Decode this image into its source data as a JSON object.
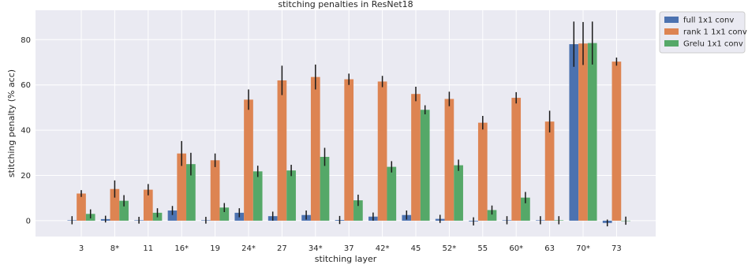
{
  "chart_data": {
    "type": "bar",
    "title": "stitching penalties in ResNet18",
    "xlabel": "stitching layer",
    "ylabel": "stitching penalty (% acc)",
    "ylim": [
      -7,
      93
    ],
    "yticks": [
      0,
      20,
      40,
      60,
      80
    ],
    "grid": true,
    "legend_placement": "outside-top-right",
    "categories": [
      "3",
      "8*",
      "11",
      "16*",
      "19",
      "24*",
      "27",
      "34*",
      "37",
      "42*",
      "45",
      "52*",
      "55",
      "60*",
      "63",
      "70*",
      "73"
    ],
    "series": [
      {
        "name": "full 1x1 conv",
        "color": "#4c72b0",
        "values": [
          0.2,
          0.7,
          0.2,
          4.5,
          0.2,
          3.5,
          2.0,
          2.5,
          0.3,
          1.8,
          2.5,
          0.8,
          -0.3,
          0.2,
          0.2,
          78.0,
          -1.0
        ],
        "errors": [
          1.8,
          1.5,
          1.5,
          2.0,
          1.5,
          2.0,
          2.0,
          2.0,
          1.8,
          1.8,
          2.0,
          1.8,
          1.8,
          1.8,
          1.8,
          10.0,
          1.5
        ]
      },
      {
        "name": "rank 1 1x1 conv",
        "color": "#dd8452",
        "values": [
          12.0,
          14.0,
          13.7,
          29.7,
          26.7,
          53.5,
          62.0,
          63.5,
          62.5,
          61.5,
          56.0,
          53.8,
          43.3,
          54.3,
          43.8,
          78.3,
          70.3
        ],
        "errors": [
          1.5,
          3.8,
          2.5,
          5.5,
          3.0,
          4.5,
          6.5,
          5.5,
          2.5,
          2.5,
          3.2,
          3.2,
          3.0,
          2.5,
          4.8,
          9.5,
          1.8
        ]
      },
      {
        "name": "Grelu 1x1 conv",
        "color": "#55a868",
        "values": [
          3.0,
          8.8,
          3.5,
          25.0,
          5.8,
          21.8,
          22.2,
          28.2,
          9.0,
          23.8,
          49.0,
          24.5,
          4.7,
          10.2,
          0.2,
          78.5,
          0.0
        ],
        "errors": [
          2.0,
          2.5,
          2.0,
          5.0,
          2.0,
          2.5,
          2.5,
          4.0,
          2.5,
          2.5,
          2.0,
          2.5,
          2.0,
          2.5,
          1.8,
          9.5,
          1.8
        ]
      }
    ]
  }
}
